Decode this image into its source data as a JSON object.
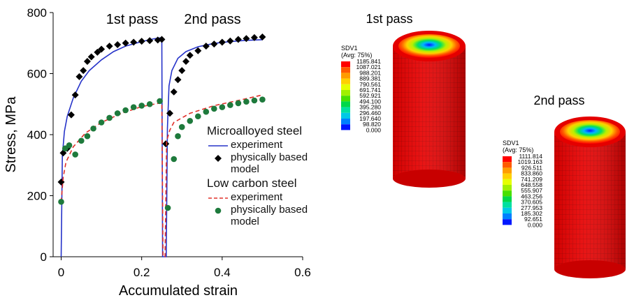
{
  "chart_data": {
    "type": "line",
    "y_label": "Stress, MPa",
    "x_label": "Accumulated strain",
    "annotations": [
      "1st pass",
      "2nd pass"
    ],
    "xlim": [
      -0.02,
      0.6
    ],
    "xticks": [
      0,
      0.2,
      0.4,
      0.6
    ],
    "ylim": [
      0,
      800
    ],
    "yticks": [
      0,
      200,
      400,
      600,
      800
    ],
    "grid": false,
    "groups": [
      {
        "name": "Microalloyed steel",
        "series": [
          {
            "name": "experiment",
            "kind": "line",
            "dash": false,
            "color": "#2633c9",
            "x": [
              0,
              0.003,
              0.008,
              0.015,
              0.03,
              0.05,
              0.07,
              0.1,
              0.13,
              0.16,
              0.2,
              0.23,
              0.25,
              0.252,
              0.261,
              0.264,
              0.268,
              0.275,
              0.29,
              0.31,
              0.34,
              0.38,
              0.42,
              0.46,
              0.5
            ],
            "values": [
              0,
              330,
              410,
              460,
              520,
              575,
              610,
              645,
              672,
              690,
              705,
              714,
              718,
              0,
              0,
              420,
              560,
              610,
              650,
              672,
              688,
              699,
              705,
              709,
              711
            ]
          },
          {
            "name": "physically based model",
            "kind": "scatter",
            "marker": "diamond",
            "color": "#000000",
            "x": [
              0,
              0.005,
              0.015,
              0.025,
              0.035,
              0.045,
              0.055,
              0.065,
              0.075,
              0.09,
              0.1,
              0.12,
              0.14,
              0.16,
              0.18,
              0.2,
              0.22,
              0.24,
              0.25,
              0.26,
              0.27,
              0.28,
              0.29,
              0.3,
              0.31,
              0.32,
              0.34,
              0.36,
              0.38,
              0.4,
              0.42,
              0.44,
              0.46,
              0.48,
              0.5
            ],
            "values": [
              245,
              340,
              355,
              465,
              530,
              590,
              610,
              640,
              655,
              670,
              680,
              690,
              695,
              700,
              703,
              706,
              708,
              710,
              712,
              370,
              470,
              540,
              580,
              610,
              640,
              660,
              675,
              690,
              697,
              703,
              707,
              712,
              715,
              718,
              720
            ]
          }
        ]
      },
      {
        "name": "Low carbon steel",
        "series": [
          {
            "name": "experiment",
            "kind": "line",
            "dash": true,
            "color": "#e0302a",
            "x": [
              0,
              0.005,
              0.012,
              0.03,
              0.06,
              0.1,
              0.15,
              0.2,
              0.25,
              0.253,
              0.258,
              0.262,
              0.27,
              0.28,
              0.32,
              0.38,
              0.45,
              0.5
            ],
            "values": [
              180,
              260,
              310,
              360,
              405,
              440,
              470,
              492,
              505,
              0,
              0,
              380,
              415,
              440,
              470,
              495,
              515,
              530
            ]
          },
          {
            "name": "physically based model",
            "kind": "scatter",
            "marker": "circle",
            "color": "#1e7a3c",
            "x": [
              0,
              0.01,
              0.02,
              0.035,
              0.05,
              0.065,
              0.08,
              0.1,
              0.12,
              0.14,
              0.16,
              0.18,
              0.2,
              0.22,
              0.245,
              0.265,
              0.28,
              0.29,
              0.3,
              0.32,
              0.34,
              0.36,
              0.38,
              0.4,
              0.42,
              0.44,
              0.46,
              0.48,
              0.5
            ],
            "values": [
              180,
              355,
              365,
              335,
              380,
              395,
              420,
              440,
              455,
              470,
              480,
              490,
              495,
              500,
              510,
              160,
              320,
              395,
              425,
              445,
              460,
              475,
              485,
              490,
              497,
              503,
              508,
              512,
              515
            ]
          }
        ]
      }
    ]
  },
  "panels": [
    {
      "title": "1st pass",
      "legend_title": "SDV1",
      "legend_subtitle": "(Avg: 75%)",
      "legend_values": [
        "1185.841",
        "1087.021",
        "988.201",
        "889.381",
        "790.561",
        "691.741",
        "592.921",
        "494.100",
        "395.280",
        "296.460",
        "197.640",
        "98.820",
        "0.000"
      ]
    },
    {
      "title": "2nd pass",
      "legend_title": "SDV1",
      "legend_subtitle": "(Avg: 75%)",
      "legend_values": [
        "1111.814",
        "1019.163",
        "926.511",
        "833.860",
        "741.209",
        "648.558",
        "555.907",
        "463.256",
        "370.605",
        "277.953",
        "185.302",
        "92.651",
        "0.000"
      ]
    }
  ]
}
